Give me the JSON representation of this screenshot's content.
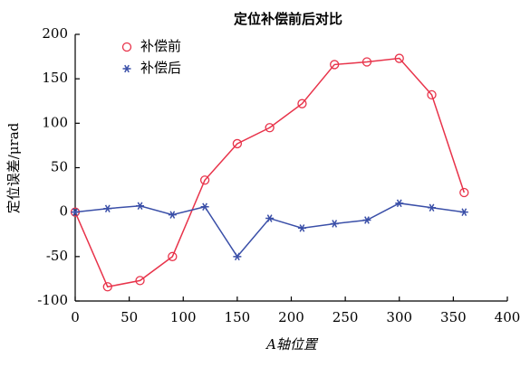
{
  "chart_data": {
    "type": "line",
    "title": "定位补偿前后对比",
    "x_label": "A轴位置",
    "y_label": "定位误差/μrad",
    "x": [
      0,
      30,
      60,
      90,
      120,
      150,
      180,
      210,
      240,
      270,
      300,
      330,
      360
    ],
    "series": [
      {
        "name": "补偿前",
        "color": "#e8334a",
        "marker": "circle",
        "values": [
          0,
          -84,
          -77,
          -50,
          36,
          77,
          95,
          122,
          166,
          169,
          173,
          132,
          22
        ]
      },
      {
        "name": "补偿后",
        "color": "#3a4fa8",
        "marker": "star",
        "values": [
          0,
          4,
          7,
          -3,
          6,
          -50,
          -7,
          -18,
          -13,
          -9,
          10,
          5,
          0
        ]
      }
    ],
    "xlim": [
      0,
      400
    ],
    "xticks": [
      0,
      50,
      100,
      150,
      200,
      250,
      300,
      350,
      400
    ],
    "ylim": [
      -100,
      200
    ],
    "yticks": [
      -100,
      -50,
      0,
      50,
      100,
      150,
      200
    ],
    "legend": "upper left",
    "grid": false
  }
}
